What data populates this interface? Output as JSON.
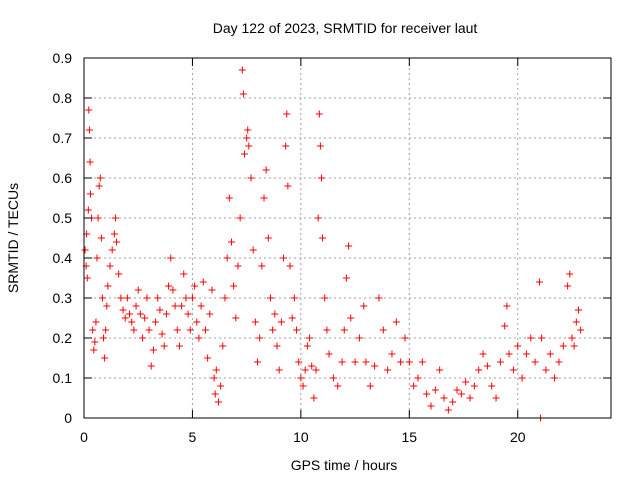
{
  "chart_data": {
    "type": "scatter",
    "title": "Day 122 of 2023, SRMTID for receiver laut",
    "xlabel": "GPS time / hours",
    "ylabel": "SRMTID / TECUs",
    "xlim": [
      0,
      24.3
    ],
    "ylim": [
      0,
      0.9
    ],
    "xticks": [
      0,
      5,
      10,
      15,
      20
    ],
    "xtick_labels": [
      "0",
      "5",
      "10",
      "15",
      "20"
    ],
    "yticks": [
      0,
      0.1,
      0.2,
      0.3,
      0.4,
      0.5,
      0.6,
      0.7,
      0.8,
      0.9
    ],
    "ytick_labels": [
      "0",
      "0.1",
      "0.2",
      "0.3",
      "0.4",
      "0.5",
      "0.6",
      "0.7",
      "0.8",
      "0.9"
    ],
    "grid": true,
    "marker": "+",
    "color": "#ff0000",
    "series": [
      {
        "name": "laut",
        "points": [
          [
            0.05,
            0.42
          ],
          [
            0.1,
            0.38
          ],
          [
            0.12,
            0.46
          ],
          [
            0.15,
            0.35
          ],
          [
            0.2,
            0.52
          ],
          [
            0.22,
            0.77
          ],
          [
            0.25,
            0.72
          ],
          [
            0.28,
            0.64
          ],
          [
            0.3,
            0.56
          ],
          [
            0.35,
            0.5
          ],
          [
            0.4,
            0.22
          ],
          [
            0.45,
            0.17
          ],
          [
            0.5,
            0.19
          ],
          [
            0.55,
            0.24
          ],
          [
            0.6,
            0.4
          ],
          [
            0.65,
            0.5
          ],
          [
            0.7,
            0.58
          ],
          [
            0.75,
            0.6
          ],
          [
            0.8,
            0.45
          ],
          [
            0.85,
            0.3
          ],
          [
            0.9,
            0.2
          ],
          [
            0.95,
            0.15
          ],
          [
            1.0,
            0.22
          ],
          [
            1.05,
            0.28
          ],
          [
            1.1,
            0.33
          ],
          [
            1.2,
            0.38
          ],
          [
            1.3,
            0.42
          ],
          [
            1.4,
            0.46
          ],
          [
            1.45,
            0.5
          ],
          [
            1.5,
            0.44
          ],
          [
            1.6,
            0.36
          ],
          [
            1.7,
            0.3
          ],
          [
            1.8,
            0.27
          ],
          [
            1.9,
            0.25
          ],
          [
            2.0,
            0.3
          ],
          [
            2.1,
            0.26
          ],
          [
            2.2,
            0.24
          ],
          [
            2.3,
            0.22
          ],
          [
            2.4,
            0.28
          ],
          [
            2.5,
            0.32
          ],
          [
            2.6,
            0.26
          ],
          [
            2.7,
            0.2
          ],
          [
            2.8,
            0.25
          ],
          [
            2.9,
            0.3
          ],
          [
            3.0,
            0.22
          ],
          [
            3.1,
            0.13
          ],
          [
            3.2,
            0.17
          ],
          [
            3.3,
            0.24
          ],
          [
            3.4,
            0.3
          ],
          [
            3.5,
            0.27
          ],
          [
            3.6,
            0.21
          ],
          [
            3.7,
            0.18
          ],
          [
            3.8,
            0.26
          ],
          [
            3.9,
            0.33
          ],
          [
            4.0,
            0.4
          ],
          [
            4.1,
            0.32
          ],
          [
            4.2,
            0.28
          ],
          [
            4.3,
            0.22
          ],
          [
            4.4,
            0.18
          ],
          [
            4.5,
            0.28
          ],
          [
            4.6,
            0.36
          ],
          [
            4.7,
            0.3
          ],
          [
            4.8,
            0.26
          ],
          [
            4.9,
            0.22
          ],
          [
            5.0,
            0.3
          ],
          [
            5.1,
            0.33
          ],
          [
            5.2,
            0.24
          ],
          [
            5.3,
            0.2
          ],
          [
            5.4,
            0.28
          ],
          [
            5.5,
            0.34
          ],
          [
            5.6,
            0.22
          ],
          [
            5.7,
            0.15
          ],
          [
            5.8,
            0.26
          ],
          [
            5.9,
            0.32
          ],
          [
            6.0,
            0.1
          ],
          [
            6.05,
            0.06
          ],
          [
            6.1,
            0.12
          ],
          [
            6.2,
            0.04
          ],
          [
            6.3,
            0.08
          ],
          [
            6.4,
            0.18
          ],
          [
            6.5,
            0.3
          ],
          [
            6.6,
            0.4
          ],
          [
            6.7,
            0.55
          ],
          [
            6.8,
            0.44
          ],
          [
            6.9,
            0.33
          ],
          [
            7.0,
            0.25
          ],
          [
            7.1,
            0.38
          ],
          [
            7.2,
            0.5
          ],
          [
            7.3,
            0.87
          ],
          [
            7.35,
            0.81
          ],
          [
            7.4,
            0.66
          ],
          [
            7.5,
            0.7
          ],
          [
            7.55,
            0.72
          ],
          [
            7.6,
            0.68
          ],
          [
            7.7,
            0.6
          ],
          [
            7.8,
            0.42
          ],
          [
            7.9,
            0.24
          ],
          [
            8.0,
            0.14
          ],
          [
            8.1,
            0.2
          ],
          [
            8.2,
            0.38
          ],
          [
            8.3,
            0.55
          ],
          [
            8.4,
            0.62
          ],
          [
            8.5,
            0.45
          ],
          [
            8.6,
            0.3
          ],
          [
            8.7,
            0.22
          ],
          [
            8.8,
            0.26
          ],
          [
            8.9,
            0.18
          ],
          [
            9.0,
            0.12
          ],
          [
            9.1,
            0.24
          ],
          [
            9.2,
            0.4
          ],
          [
            9.3,
            0.68
          ],
          [
            9.35,
            0.76
          ],
          [
            9.4,
            0.58
          ],
          [
            9.5,
            0.38
          ],
          [
            9.6,
            0.25
          ],
          [
            9.7,
            0.3
          ],
          [
            9.8,
            0.22
          ],
          [
            9.9,
            0.14
          ],
          [
            10.0,
            0.1
          ],
          [
            10.1,
            0.08
          ],
          [
            10.2,
            0.12
          ],
          [
            10.3,
            0.18
          ],
          [
            10.4,
            0.2
          ],
          [
            10.5,
            0.13
          ],
          [
            10.6,
            0.05
          ],
          [
            10.7,
            0.12
          ],
          [
            10.8,
            0.5
          ],
          [
            10.85,
            0.76
          ],
          [
            10.9,
            0.68
          ],
          [
            10.95,
            0.6
          ],
          [
            11.0,
            0.45
          ],
          [
            11.1,
            0.3
          ],
          [
            11.2,
            0.22
          ],
          [
            11.3,
            0.16
          ],
          [
            11.5,
            0.1
          ],
          [
            11.7,
            0.08
          ],
          [
            11.9,
            0.14
          ],
          [
            12.0,
            0.22
          ],
          [
            12.1,
            0.35
          ],
          [
            12.2,
            0.43
          ],
          [
            12.3,
            0.25
          ],
          [
            12.5,
            0.14
          ],
          [
            12.7,
            0.2
          ],
          [
            12.9,
            0.28
          ],
          [
            13.0,
            0.14
          ],
          [
            13.2,
            0.08
          ],
          [
            13.4,
            0.13
          ],
          [
            13.6,
            0.3
          ],
          [
            13.8,
            0.22
          ],
          [
            14.0,
            0.12
          ],
          [
            14.2,
            0.16
          ],
          [
            14.4,
            0.24
          ],
          [
            14.6,
            0.14
          ],
          [
            14.8,
            0.2
          ],
          [
            15.0,
            0.14
          ],
          [
            15.2,
            0.08
          ],
          [
            15.4,
            0.1
          ],
          [
            15.6,
            0.14
          ],
          [
            15.8,
            0.06
          ],
          [
            16.0,
            0.03
          ],
          [
            16.2,
            0.07
          ],
          [
            16.4,
            0.12
          ],
          [
            16.6,
            0.05
          ],
          [
            16.8,
            0.02
          ],
          [
            17.0,
            0.04
          ],
          [
            17.2,
            0.07
          ],
          [
            17.4,
            0.06
          ],
          [
            17.6,
            0.09
          ],
          [
            17.8,
            0.05
          ],
          [
            18.0,
            0.08
          ],
          [
            18.2,
            0.12
          ],
          [
            18.4,
            0.16
          ],
          [
            18.6,
            0.13
          ],
          [
            18.8,
            0.08
          ],
          [
            19.0,
            0.05
          ],
          [
            19.2,
            0.14
          ],
          [
            19.4,
            0.23
          ],
          [
            19.5,
            0.28
          ],
          [
            19.6,
            0.16
          ],
          [
            19.8,
            0.12
          ],
          [
            20.0,
            0.18
          ],
          [
            20.2,
            0.1
          ],
          [
            20.4,
            0.16
          ],
          [
            20.6,
            0.2
          ],
          [
            20.8,
            0.14
          ],
          [
            21.0,
            0.34
          ],
          [
            21.05,
            0.0
          ],
          [
            21.1,
            0.2
          ],
          [
            21.3,
            0.12
          ],
          [
            21.5,
            0.16
          ],
          [
            21.7,
            0.1
          ],
          [
            21.9,
            0.14
          ],
          [
            22.1,
            0.18
          ],
          [
            22.3,
            0.33
          ],
          [
            22.4,
            0.36
          ],
          [
            22.5,
            0.2
          ],
          [
            22.6,
            0.18
          ],
          [
            22.7,
            0.24
          ],
          [
            22.8,
            0.27
          ],
          [
            22.9,
            0.22
          ]
        ]
      }
    ]
  }
}
